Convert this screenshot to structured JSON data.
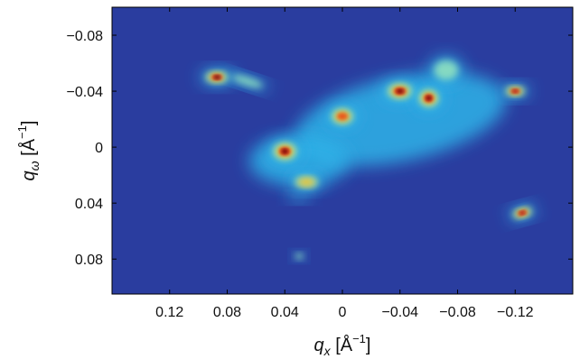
{
  "chart_data": {
    "type": "heatmap",
    "title": "",
    "xlabel": {
      "symbol": "q",
      "subscript": "x",
      "unit": " [Å",
      "exponent": "−1",
      "close": "]"
    },
    "ylabel": {
      "symbol": "q",
      "subscript": "ω",
      "unit": " [Å",
      "exponent": "−1",
      "close": "]"
    },
    "xlim": [
      0.16,
      -0.16
    ],
    "ylim": [
      0.105,
      -0.1
    ],
    "x_reversed": true,
    "y_reversed": true,
    "x_ticks": [
      {
        "value": 0.12,
        "label": "0.12"
      },
      {
        "value": 0.08,
        "label": "0.08"
      },
      {
        "value": 0.04,
        "label": "0.04"
      },
      {
        "value": 0.0,
        "label": "0"
      },
      {
        "value": -0.04,
        "label": "−0.04"
      },
      {
        "value": -0.08,
        "label": "−0.08"
      },
      {
        "value": -0.12,
        "label": "−0.12"
      }
    ],
    "y_ticks": [
      {
        "value": -0.08,
        "label": "−0.08"
      },
      {
        "value": -0.04,
        "label": "−0.04"
      },
      {
        "value": 0.0,
        "label": "0"
      },
      {
        "value": 0.04,
        "label": "0.04"
      },
      {
        "value": 0.08,
        "label": "0.08"
      }
    ],
    "colormap": [
      "#21349c",
      "#2a6fd6",
      "#2fb3e8",
      "#8fe0bf",
      "#d8ee7a",
      "#f6c22a",
      "#e8561f",
      "#a10f14",
      "#5c0000"
    ],
    "background_color": "#2a3d9f",
    "grid": false,
    "features": [
      {
        "name": "diffuse-cloud",
        "x": -0.04,
        "y": -0.02,
        "rx": 0.075,
        "ry": 0.03,
        "rot": -12,
        "intensity": 0.35
      },
      {
        "name": "diffuse-cloud-left",
        "x": 0.03,
        "y": 0.01,
        "rx": 0.035,
        "ry": 0.018,
        "rot": 0,
        "intensity": 0.3
      },
      {
        "name": "spot-upper-left",
        "x": 0.087,
        "y": -0.05,
        "rx": 0.012,
        "ry": 0.006,
        "rot": 0,
        "intensity": 0.95
      },
      {
        "name": "arc-upper-left",
        "x": 0.066,
        "y": -0.047,
        "rx": 0.016,
        "ry": 0.004,
        "rot": 18,
        "intensity": 0.4
      },
      {
        "name": "spot-center",
        "x": 0.0,
        "y": -0.022,
        "rx": 0.011,
        "ry": 0.008,
        "rot": 0,
        "intensity": 0.72
      },
      {
        "name": "spot-peak-1",
        "x": -0.04,
        "y": -0.04,
        "rx": 0.013,
        "ry": 0.008,
        "rot": 0,
        "intensity": 1.0
      },
      {
        "name": "spot-peak-2",
        "x": -0.06,
        "y": -0.035,
        "rx": 0.01,
        "ry": 0.009,
        "rot": 0,
        "intensity": 0.95
      },
      {
        "name": "spot-left-center",
        "x": 0.04,
        "y": 0.003,
        "rx": 0.012,
        "ry": 0.009,
        "rot": 0,
        "intensity": 0.98
      },
      {
        "name": "spot-low",
        "x": 0.025,
        "y": 0.025,
        "rx": 0.012,
        "ry": 0.006,
        "rot": 0,
        "intensity": 0.55
      },
      {
        "name": "spot-right",
        "x": -0.12,
        "y": -0.04,
        "rx": 0.01,
        "ry": 0.005,
        "rot": 0,
        "intensity": 0.92
      },
      {
        "name": "spot-lower-right",
        "x": -0.125,
        "y": 0.047,
        "rx": 0.01,
        "ry": 0.005,
        "rot": -15,
        "intensity": 0.92
      },
      {
        "name": "blob-upper-right",
        "x": -0.072,
        "y": -0.055,
        "rx": 0.012,
        "ry": 0.01,
        "rot": 0,
        "intensity": 0.45
      },
      {
        "name": "spot-faint-bottom",
        "x": 0.03,
        "y": 0.078,
        "rx": 0.004,
        "ry": 0.003,
        "rot": 0,
        "intensity": 0.5
      },
      {
        "name": "spot-faint-mid",
        "x": 0.03,
        "y": 0.036,
        "rx": 0.008,
        "ry": 0.003,
        "rot": 0,
        "intensity": 0.35
      }
    ]
  }
}
